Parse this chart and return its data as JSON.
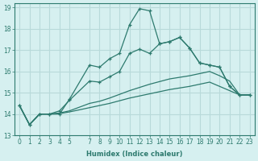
{
  "xlabel": "Humidex (Indice chaleur)",
  "ylabel": "",
  "bg_color": "#d6f0f0",
  "grid_color": "#b8dada",
  "line_color": "#2d7a6e",
  "xlim": [
    -0.5,
    23.5
  ],
  "ylim": [
    13,
    19.2
  ],
  "xticks": [
    0,
    1,
    2,
    3,
    4,
    5,
    7,
    8,
    9,
    10,
    11,
    12,
    13,
    14,
    15,
    16,
    17,
    18,
    19,
    20,
    21,
    22,
    23
  ],
  "yticks": [
    13,
    14,
    15,
    16,
    17,
    18,
    19
  ],
  "lines": [
    {
      "x": [
        0,
        1,
        2,
        3,
        4,
        5,
        7,
        8,
        9,
        10,
        11,
        12,
        13,
        14,
        15,
        16,
        17,
        18,
        19,
        20,
        21,
        22,
        23
      ],
      "y": [
        14.4,
        13.5,
        14.0,
        14.0,
        14.0,
        14.7,
        16.3,
        16.2,
        16.6,
        16.85,
        18.2,
        18.95,
        18.85,
        17.3,
        17.4,
        17.6,
        17.1,
        16.4,
        16.3,
        16.2,
        15.3,
        14.9,
        14.9
      ],
      "marker": true
    },
    {
      "x": [
        0,
        1,
        2,
        3,
        4,
        5,
        7,
        8,
        9,
        10,
        11,
        12,
        13,
        14,
        15,
        16,
        17,
        18,
        19,
        20,
        21,
        22,
        23
      ],
      "y": [
        14.4,
        13.5,
        14.0,
        14.0,
        14.15,
        14.65,
        15.55,
        15.5,
        15.75,
        16.0,
        16.85,
        17.05,
        16.85,
        17.3,
        17.4,
        17.6,
        17.1,
        16.4,
        16.3,
        16.2,
        15.3,
        14.9,
        14.9
      ],
      "marker": true
    },
    {
      "x": [
        0,
        1,
        2,
        3,
        4,
        5,
        7,
        8,
        9,
        11,
        13,
        15,
        17,
        19,
        20,
        21,
        22,
        23
      ],
      "y": [
        14.4,
        13.5,
        14.0,
        14.0,
        14.05,
        14.15,
        14.5,
        14.6,
        14.75,
        15.1,
        15.4,
        15.65,
        15.8,
        16.0,
        15.8,
        15.55,
        14.9,
        14.9
      ],
      "marker": false
    },
    {
      "x": [
        0,
        1,
        2,
        3,
        4,
        5,
        7,
        8,
        9,
        11,
        13,
        15,
        17,
        19,
        20,
        21,
        22,
        23
      ],
      "y": [
        14.4,
        13.5,
        14.0,
        14.0,
        14.02,
        14.1,
        14.3,
        14.4,
        14.5,
        14.75,
        14.95,
        15.15,
        15.3,
        15.5,
        15.3,
        15.1,
        14.9,
        14.9
      ],
      "marker": false
    }
  ]
}
